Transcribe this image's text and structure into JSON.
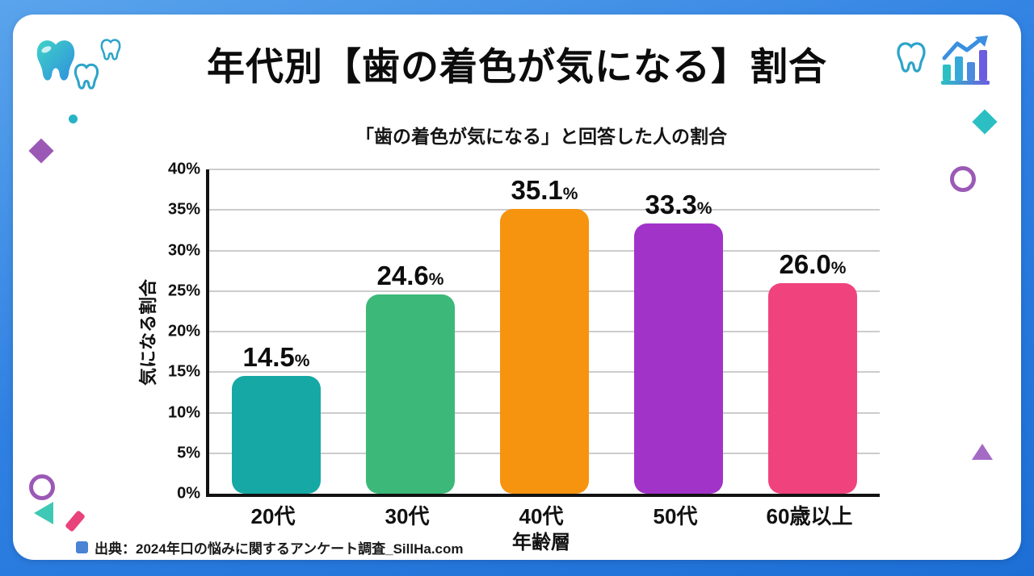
{
  "header": {
    "title": "年代別【歯の着色が気になる】割合"
  },
  "chart_data": {
    "type": "bar",
    "title": "「歯の着色が気になる」と回答した人の割合",
    "categories": [
      "20代",
      "30代",
      "40代",
      "50代",
      "60歳以上"
    ],
    "values": [
      14.5,
      24.6,
      35.1,
      33.3,
      26.0
    ],
    "value_labels": [
      "14.5",
      "24.6",
      "35.1",
      "33.3",
      "26.0"
    ],
    "value_suffix": "%",
    "bar_colors": [
      "#16a8a4",
      "#3cb878",
      "#f6930f",
      "#a233c9",
      "#f0437e"
    ],
    "xlabel": "年齢層",
    "ylabel": "気になる割合",
    "ylim": [
      0,
      40
    ],
    "ytick_step": 5,
    "ytick_suffix": "%",
    "grid": true,
    "legend": "none"
  },
  "footer": {
    "source_label": "出典：2024年口の悩みに関するアンケート調査_SillHa.com",
    "bullet_color": "#4a82d4"
  },
  "decorations": {
    "icons": [
      "tooth-filled-icon",
      "tooth-outline-icon",
      "tooth-outline-small-icon",
      "tooth-outline-right-icon",
      "growth-chart-icon"
    ],
    "accent_teal": "#2bbfc4",
    "accent_purple": "#9b59b6",
    "accent_pink": "#e8437a",
    "frame_blue": "#2f80e2"
  }
}
